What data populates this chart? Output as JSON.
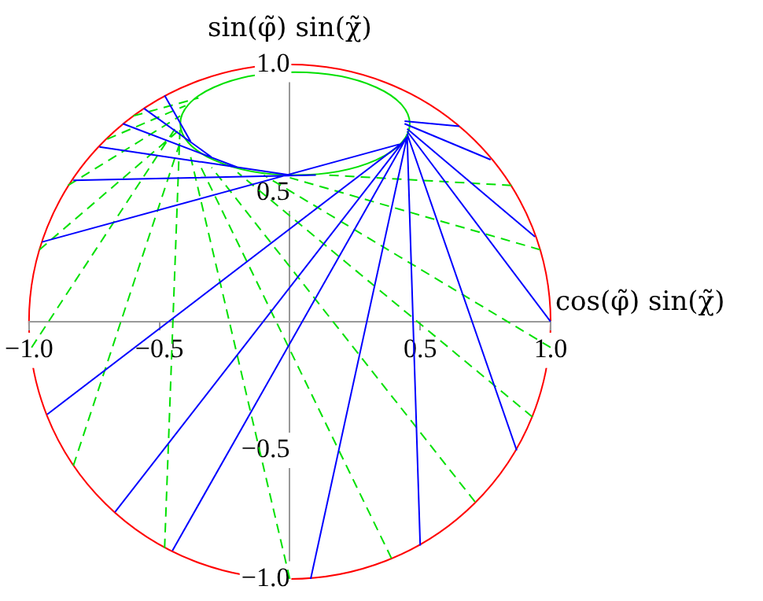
{
  "chart_data": {
    "type": "line",
    "xlabel": "cos(φ̃) sin(χ̃)",
    "ylabel": "sin(φ̃) sin(χ̃)",
    "xlim": [
      -1,
      1
    ],
    "ylim": [
      -1,
      1
    ],
    "xticks": [
      {
        "value": -1,
        "label": "−1.0"
      },
      {
        "value": -0.5,
        "label": "−0.5"
      },
      {
        "value": 0.5,
        "label": "0.5"
      },
      {
        "value": 1,
        "label": "1.0"
      }
    ],
    "yticks": [
      {
        "value": -1,
        "label": "−1.0"
      },
      {
        "value": -0.5,
        "label": "−0.5"
      },
      {
        "value": 0.5,
        "label": "0.5"
      },
      {
        "value": 1,
        "label": "1.0"
      }
    ],
    "grid": false,
    "legend": false,
    "marker": "none",
    "series": [
      {
        "color": "#0000ff",
        "line_style": "solid",
        "x": [
          0.08,
          0.45,
          null,
          0.5,
          0.45,
          null,
          0.87,
          0.45,
          null,
          1.0,
          0.45,
          null,
          0.94,
          0.45,
          null,
          0.77,
          0.44,
          null,
          0.65,
          0.44,
          null,
          -0.45,
          0.45,
          null,
          -0.67,
          0.45,
          null,
          -0.93,
          0.45,
          null,
          -0.95,
          0.42,
          null,
          -0.83,
          0.1,
          null,
          -0.73,
          0.0,
          null,
          -0.64,
          -0.2,
          null,
          -0.56,
          -0.3,
          null,
          -0.48,
          -0.38
        ],
        "values": [
          -1.0,
          0.72,
          null,
          -0.87,
          0.72,
          null,
          -0.5,
          0.73,
          null,
          0.0,
          0.74,
          null,
          0.33,
          0.75,
          null,
          0.63,
          0.77,
          null,
          0.76,
          0.78,
          null,
          -0.89,
          0.72,
          null,
          -0.74,
          0.72,
          null,
          -0.36,
          0.71,
          null,
          0.31,
          0.69,
          null,
          0.55,
          0.57,
          null,
          0.68,
          0.57,
          null,
          0.77,
          0.6,
          null,
          0.83,
          0.64,
          null,
          0.88,
          0.7
        ]
      },
      {
        "color": "#00e000",
        "line_style": "dashed",
        "x": [
          -0.99,
          -0.44,
          null,
          -0.83,
          -0.42,
          null,
          -0.48,
          -0.42,
          null,
          0.0,
          -0.38,
          null,
          0.39,
          -0.35,
          null,
          0.71,
          -0.3,
          null,
          0.93,
          -0.2,
          null,
          1.0,
          -0.1,
          null,
          0.96,
          0.0,
          null,
          0.85,
          0.15,
          null,
          -0.96,
          -0.43,
          null,
          -0.85,
          -0.42,
          null,
          -0.7,
          -0.4,
          null,
          -0.6,
          -0.35
        ],
        "values": [
          -0.1,
          0.75,
          null,
          -0.56,
          0.7,
          null,
          -0.88,
          0.78,
          null,
          -1.0,
          0.64,
          null,
          -0.92,
          0.62,
          null,
          -0.7,
          0.6,
          null,
          -0.37,
          0.58,
          null,
          -0.1,
          0.57,
          null,
          0.28,
          0.56,
          null,
          0.53,
          0.57,
          null,
          0.28,
          0.74,
          null,
          0.53,
          0.8,
          null,
          0.71,
          0.84,
          null,
          0.8,
          0.87
        ]
      }
    ]
  }
}
